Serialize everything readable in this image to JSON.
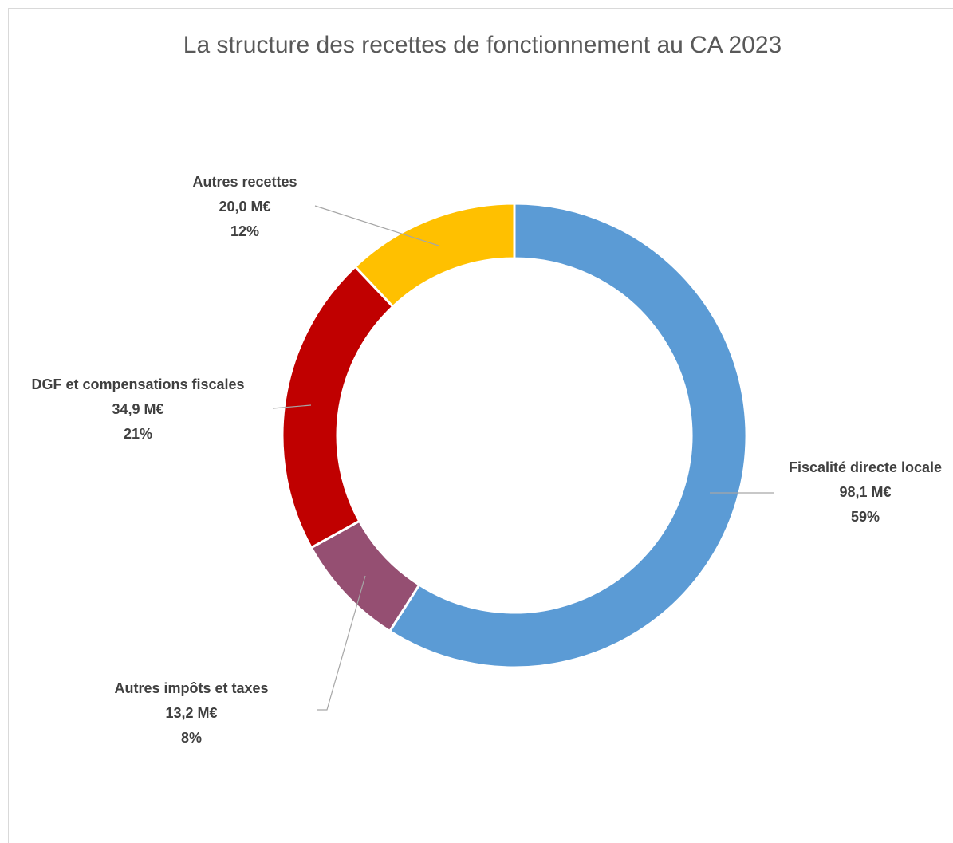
{
  "chart_data": {
    "type": "donut",
    "title": "La structure des recettes de fonctionnement au CA 2023",
    "categories": [
      "Fiscalité directe locale",
      "Autres impôts et taxes",
      "DGF et compensations fiscales",
      "Autres recettes"
    ],
    "values": [
      98.1,
      13.2,
      34.9,
      20.0
    ],
    "value_labels": [
      "98,1 M€",
      "13,2 M€",
      "34,9 M€",
      "20,0 M€"
    ],
    "percent_labels": [
      "59%",
      "8%",
      "21%",
      "12%"
    ],
    "colors": [
      "#5b9bd5",
      "#954f72",
      "#c00000",
      "#ffc000"
    ]
  }
}
